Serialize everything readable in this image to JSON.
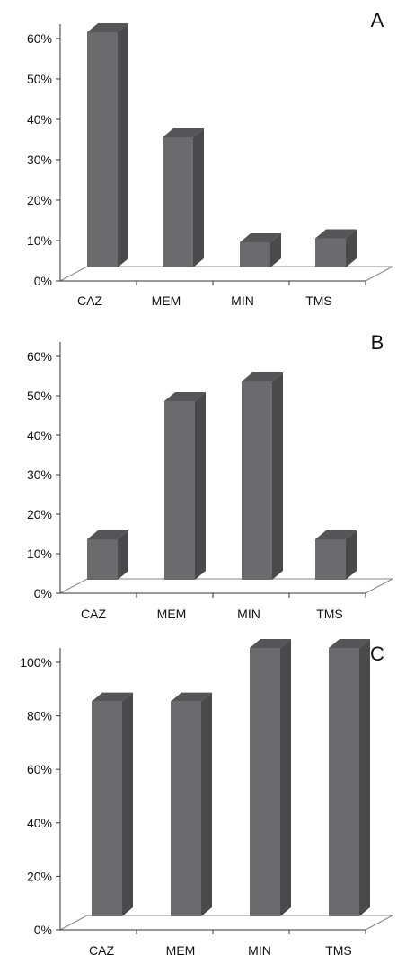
{
  "colors": {
    "bar_front": "#6b6b6d",
    "bar_side": "#4a4a4c",
    "bar_top": "#555557",
    "axis": "#333333",
    "floor": "#888888"
  },
  "chart_data": [
    {
      "type": "bar",
      "panel_label": "A",
      "categories": [
        "CAZ",
        "MEM",
        "MIN",
        "TMS"
      ],
      "values": [
        58,
        32,
        6,
        7
      ],
      "ylim": [
        0,
        60
      ],
      "yticks": [
        "0%",
        "10%",
        "20%",
        "30%",
        "40%",
        "50%",
        "60%"
      ],
      "grid": false
    },
    {
      "type": "bar",
      "panel_label": "B",
      "categories": [
        "CAZ",
        "MEM",
        "MIN",
        "TMS"
      ],
      "values": [
        10,
        45,
        50,
        10
      ],
      "ylim": [
        0,
        60
      ],
      "yticks": [
        "0%",
        "10%",
        "20%",
        "30%",
        "40%",
        "50%",
        "60%"
      ],
      "grid": false
    },
    {
      "type": "bar",
      "panel_label": "C",
      "categories": [
        "CAZ",
        "MEM",
        "MIN",
        "TMS"
      ],
      "values": [
        80,
        80,
        100,
        100
      ],
      "ylim": [
        0,
        100
      ],
      "yticks": [
        "0%",
        "20%",
        "40%",
        "60%",
        "80%",
        "100%"
      ],
      "grid": false
    }
  ]
}
